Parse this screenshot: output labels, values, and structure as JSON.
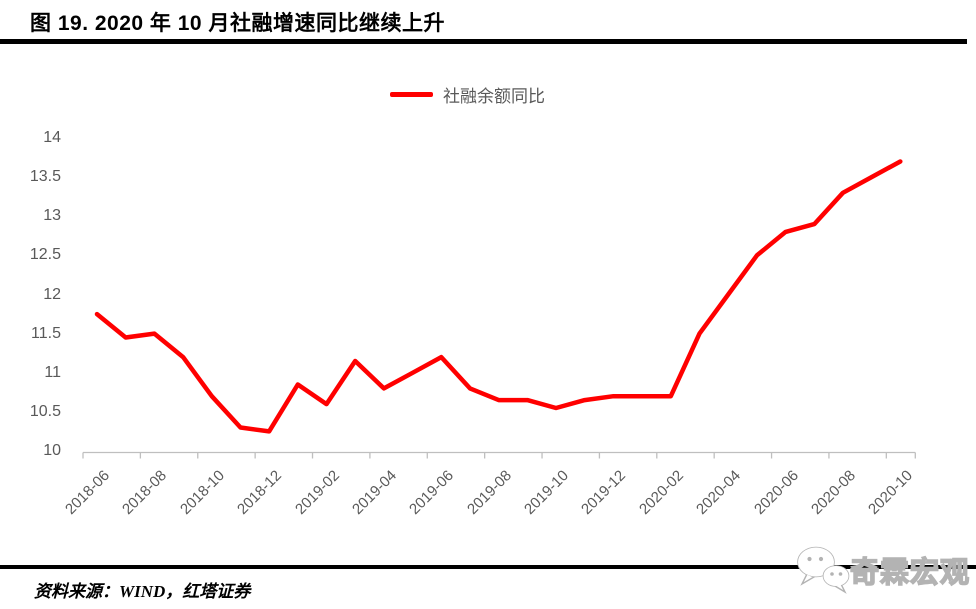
{
  "title": "图 19. 2020 年 10 月社融增速同比继续上升",
  "legend": {
    "label": "社融余额同比",
    "line_color": "#ff0000"
  },
  "source_note": "资料来源：WIND，红塔证券",
  "watermark": {
    "text": "奇霖宏观",
    "icon": "wechat-icon"
  },
  "colors": {
    "series_line": "#ff0000",
    "axis_text": "#595959",
    "axis_line": "#bfbfbf",
    "rule": "#000000"
  },
  "chart_data": {
    "type": "line",
    "title": "图 19. 2020 年 10 月社融增速同比继续上升",
    "xlabel": "",
    "ylabel": "",
    "ylim": [
      10,
      14
    ],
    "y_ticks": [
      14,
      13.5,
      13,
      12.5,
      12,
      11.5,
      11,
      10.5,
      10
    ],
    "grid": false,
    "legend_position": "top-center",
    "x": [
      "2018-06",
      "2018-07",
      "2018-08",
      "2018-09",
      "2018-10",
      "2018-11",
      "2018-12",
      "2019-01",
      "2019-02",
      "2019-03",
      "2019-04",
      "2019-05",
      "2019-06",
      "2019-07",
      "2019-08",
      "2019-09",
      "2019-10",
      "2019-11",
      "2019-12",
      "2020-01",
      "2020-02",
      "2020-03",
      "2020-04",
      "2020-05",
      "2020-06",
      "2020-07",
      "2020-08",
      "2020-09",
      "2020-10"
    ],
    "x_tick_labels": [
      "2018-06",
      "2018-08",
      "2018-10",
      "2018-12",
      "2019-02",
      "2019-04",
      "2019-06",
      "2019-08",
      "2019-10",
      "2019-12",
      "2020-02",
      "2020-04",
      "2020-06",
      "2020-08",
      "2020-10"
    ],
    "series": [
      {
        "name": "社融余额同比",
        "color": "#ff0000",
        "values": [
          11.75,
          11.45,
          11.5,
          11.2,
          10.7,
          10.3,
          10.25,
          10.85,
          10.6,
          11.15,
          10.8,
          11.0,
          11.2,
          10.8,
          10.65,
          10.65,
          10.55,
          10.65,
          10.7,
          10.7,
          10.7,
          11.5,
          12.0,
          12.5,
          12.8,
          12.9,
          13.3,
          13.5,
          13.7
        ]
      }
    ]
  }
}
